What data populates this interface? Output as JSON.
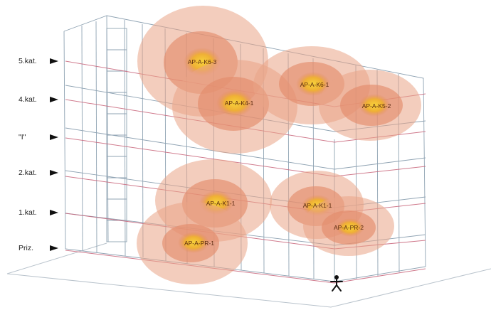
{
  "floors": [
    {
      "label": "5.kat."
    },
    {
      "label": "4.kat."
    },
    {
      "label": "\"I\""
    },
    {
      "label": "2.kat."
    },
    {
      "label": "1.kat."
    },
    {
      "label": "Priz."
    }
  ],
  "access_points": [
    {
      "label": "AP-A-K6-3"
    },
    {
      "label": "AP-A-K4-1"
    },
    {
      "label": "AP-A-K6-1"
    },
    {
      "label": "AP-A-K5-2"
    },
    {
      "label": "AP-A-K1-1"
    },
    {
      "label": "AP-A-PR-1"
    },
    {
      "label": "AP-A-K1-1"
    },
    {
      "label": "AP-A-PR-2"
    }
  ],
  "colors": {
    "coverage_outer": "#e9a486",
    "coverage_mid": "#e38c6c",
    "coverage_core": "#f0b030",
    "floor_line": "#c8647a",
    "frame_line": "#8fa3b3"
  },
  "icons": {
    "person": "person-icon"
  }
}
